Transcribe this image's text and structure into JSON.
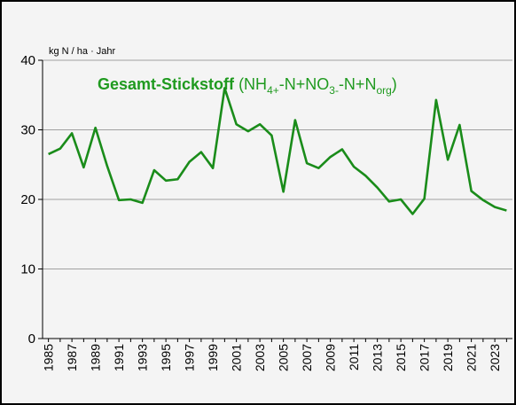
{
  "chart_data": {
    "type": "line",
    "title": "Gesamt-Stickstoff",
    "formula": [
      "(NH",
      "4+",
      "-N+NO",
      "3-",
      "-N+N",
      "org",
      ")"
    ],
    "y_unit": "kg N / ha · Jahr",
    "categories": [
      "1985",
      null,
      "1987",
      null,
      "1989",
      null,
      "1991",
      null,
      "1993",
      null,
      "1995",
      null,
      "1997",
      null,
      "1999",
      null,
      "2001",
      null,
      "2003",
      null,
      "2005",
      null,
      "2007",
      null,
      "2009",
      null,
      "2011",
      null,
      "2013",
      null,
      "2015",
      null,
      "2017",
      null,
      "2019",
      null,
      "2021",
      null,
      "2023",
      null
    ],
    "series": [
      {
        "name": "Gesamt-Stickstoff",
        "color": "#1a8c1a",
        "values": [
          26.5,
          27.3,
          29.5,
          24.6,
          30.3,
          24.8,
          19.9,
          20.0,
          19.5,
          24.2,
          22.7,
          22.9,
          25.4,
          26.8,
          24.5,
          36.0,
          30.8,
          29.8,
          30.8,
          29.2,
          21.1,
          31.4,
          25.2,
          24.5,
          26.1,
          27.2,
          24.7,
          23.4,
          21.7,
          19.7,
          20.0,
          17.9,
          20.1,
          34.3,
          25.7,
          30.7,
          21.2,
          19.9,
          18.9,
          18.4
        ]
      }
    ],
    "ylim": [
      0,
      40
    ],
    "yticks": [
      0,
      10,
      20,
      30,
      40
    ],
    "grid": true
  }
}
